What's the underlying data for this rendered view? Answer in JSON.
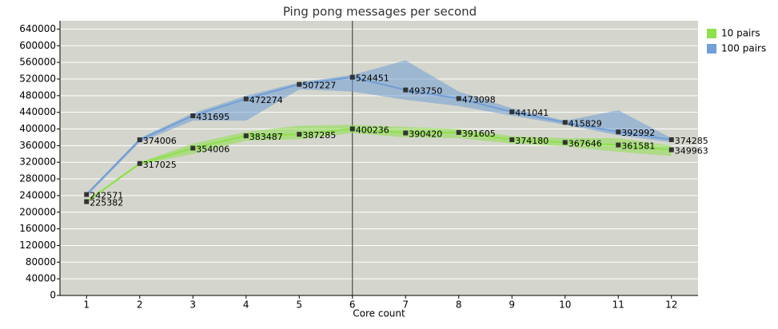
{
  "chart_data": {
    "type": "line",
    "title": "Ping pong messages per second",
    "xlabel": "Core count",
    "x": [
      1,
      2,
      3,
      4,
      5,
      6,
      7,
      8,
      9,
      10,
      11,
      12
    ],
    "xlim": [
      0.5,
      12.5
    ],
    "xticks": [
      1,
      2,
      3,
      4,
      5,
      6,
      7,
      8,
      9,
      10,
      11,
      12
    ],
    "ylim": [
      0,
      660000
    ],
    "yticks": [
      0,
      40000,
      80000,
      120000,
      160000,
      200000,
      240000,
      280000,
      320000,
      360000,
      400000,
      440000,
      480000,
      520000,
      560000,
      600000,
      640000
    ],
    "grid": true,
    "legend": "outside-right",
    "vline_x": 6,
    "series": [
      {
        "name": "10 pairs",
        "color": "#8ee04c",
        "values": [
          225382,
          317025,
          354006,
          383487,
          387285,
          400236,
          390420,
          391605,
          374180,
          367646,
          361581,
          349963
        ],
        "band_low": [
          222000,
          314000,
          340000,
          372000,
          375000,
          390000,
          380000,
          378000,
          365000,
          358000,
          345000,
          335000
        ],
        "band_high": [
          228000,
          320000,
          365000,
          393000,
          408000,
          410000,
          405000,
          400000,
          383000,
          378000,
          378000,
          360000
        ]
      },
      {
        "name": "100 pairs",
        "color": "#719fd6",
        "values": [
          242571,
          374006,
          431695,
          472274,
          507227,
          524451,
          493750,
          473098,
          441041,
          415829,
          392992,
          374285
        ],
        "band_low": [
          238000,
          368000,
          420000,
          420000,
          495000,
          490000,
          470000,
          455000,
          432000,
          410000,
          385000,
          368000
        ],
        "band_high": [
          246000,
          378000,
          438000,
          480000,
          512000,
          530000,
          565000,
          490000,
          450000,
          420000,
          445000,
          378000
        ]
      }
    ]
  }
}
